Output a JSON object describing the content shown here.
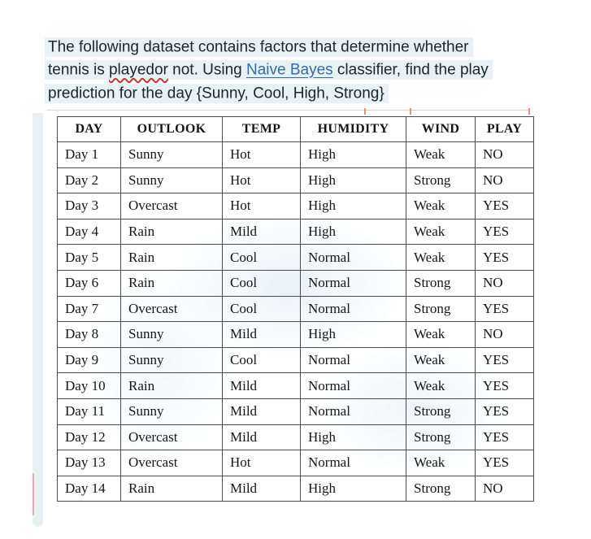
{
  "colors": {
    "text": "#18262e",
    "highlight": "#e8f1f3",
    "link": "#2e6dab",
    "squiggle": "#c0392b",
    "table_border": "#4a4a4a",
    "left_strip": "#e7f0f3",
    "red_marks": "#dd9287"
  },
  "instruction": {
    "line1": "The following dataset contains factors that determine whether",
    "line2_pre": "tennis is ",
    "line2_misspelled": "playedor",
    "line2_mid": " not. Using ",
    "line2_link": "Naive Bayes",
    "line2_post": " classifier, find the play",
    "line3": "prediction for the day {Sunny, Cool, High, Strong}"
  },
  "table": {
    "headers": [
      "DAY",
      "OUTLOOK",
      "TEMP",
      "HUMIDITY",
      "WIND",
      "PLAY"
    ],
    "rows": [
      [
        "Day 1",
        "Sunny",
        "Hot",
        "High",
        "Weak",
        "NO"
      ],
      [
        "Day 2",
        "Sunny",
        "Hot",
        "High",
        "Strong",
        "NO"
      ],
      [
        "Day 3",
        "Overcast",
        "Hot",
        "High",
        "Weak",
        "YES"
      ],
      [
        "Day 4",
        "Rain",
        "Mild",
        "High",
        "Weak",
        "YES"
      ],
      [
        "Day 5",
        "Rain",
        "Cool",
        "Normal",
        "Weak",
        "YES"
      ],
      [
        "Day 6",
        "Rain",
        "Cool",
        "Normal",
        "Strong",
        "NO"
      ],
      [
        "Day 7",
        "Overcast",
        "Cool",
        "Normal",
        "Strong",
        "YES"
      ],
      [
        "Day 8",
        "Sunny",
        "Mild",
        "High",
        "Weak",
        "NO"
      ],
      [
        "Day 9",
        "Sunny",
        "Cool",
        "Normal",
        "Weak",
        "YES"
      ],
      [
        "Day 10",
        "Rain",
        "Mild",
        "Normal",
        "Weak",
        "YES"
      ],
      [
        "Day 11",
        "Sunny",
        "Mild",
        "Normal",
        "Strong",
        "YES"
      ],
      [
        "Day 12",
        "Overcast",
        "Mild",
        "High",
        "Strong",
        "YES"
      ],
      [
        "Day 13",
        "Overcast",
        "Hot",
        "Normal",
        "Weak",
        "YES"
      ],
      [
        "Day 14",
        "Rain",
        "Mild",
        "High",
        "Strong",
        "NO"
      ]
    ]
  }
}
